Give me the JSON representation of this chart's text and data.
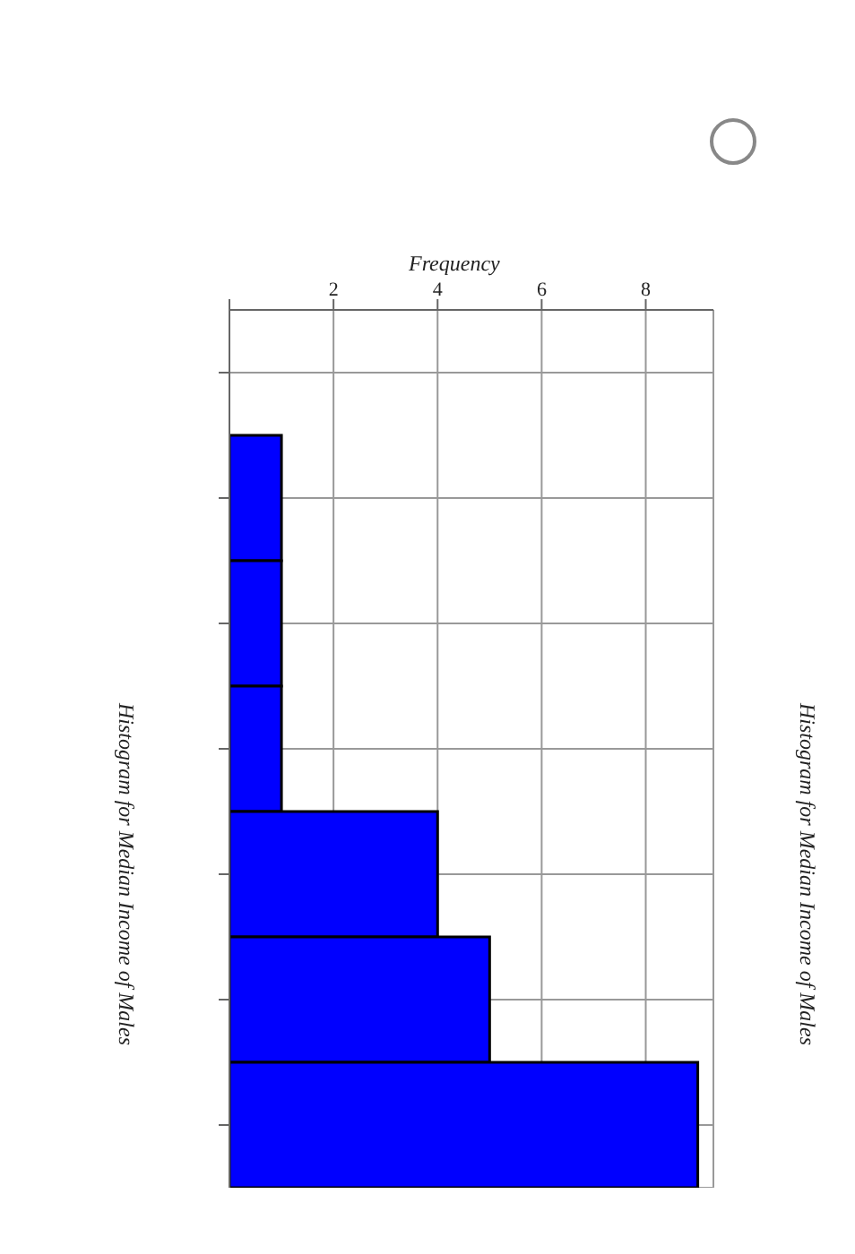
{
  "chart_data": {
    "type": "bar",
    "orientation": "horizontal",
    "title": "Histogram for Median Income of Males",
    "xlabel": "Frequency",
    "annotations": [
      "Histogram for Median Income of Males"
    ],
    "categories": [
      null,
      null,
      null,
      null,
      null,
      null,
      null
    ],
    "values": [
      0,
      1,
      1,
      1,
      4,
      5,
      9
    ],
    "color": "#0000ff",
    "xlim": [
      0,
      9.3
    ],
    "xticks": [
      {
        "value": 0,
        "label": null
      },
      2,
      4,
      6,
      8
    ],
    "grid": true,
    "legend": false
  }
}
